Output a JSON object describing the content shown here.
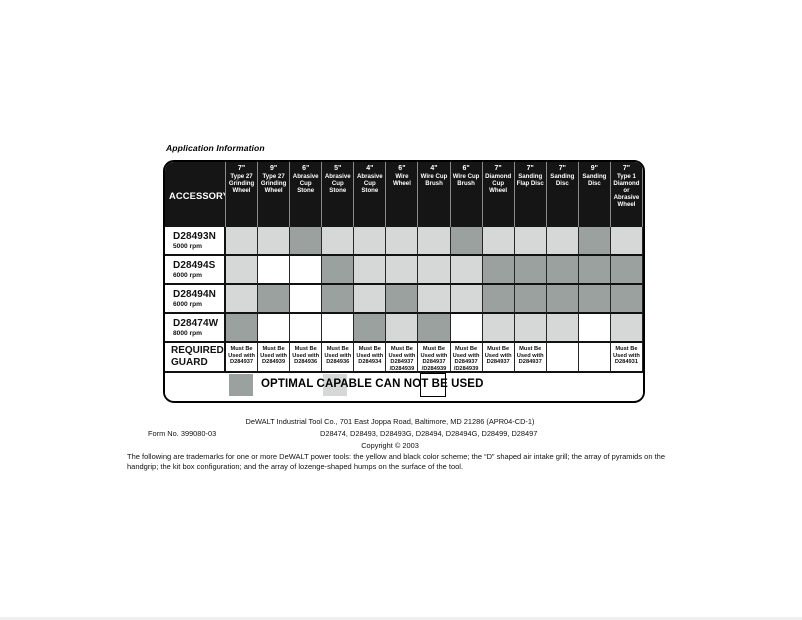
{
  "page": {
    "title": "Application Information"
  },
  "table": {
    "corner_header": "ACCESSORY",
    "columns": [
      {
        "size": "7\"",
        "name": "Type 27 Grinding Wheel"
      },
      {
        "size": "9\"",
        "name": "Type 27 Grinding Wheel"
      },
      {
        "size": "6\"",
        "name": "Abrasive Cup Stone"
      },
      {
        "size": "5\"",
        "name": "Abrasive Cup Stone"
      },
      {
        "size": "4\"",
        "name": "Abrasive Cup Stone"
      },
      {
        "size": "6\"",
        "name": "Wire Wheel"
      },
      {
        "size": "4\"",
        "name": "Wire Cup Brush"
      },
      {
        "size": "6\"",
        "name": "Wire Cup Brush"
      },
      {
        "size": "7\"",
        "name": "Diamond Cup Wheel"
      },
      {
        "size": "7\"",
        "name": "Sanding Flap Disc"
      },
      {
        "size": "7\"",
        "name": "Sanding Disc"
      },
      {
        "size": "9\"",
        "name": "Sanding Disc"
      },
      {
        "size": "7\"",
        "name": "Type 1 Diamond or Abrasive Wheel"
      }
    ],
    "rows": [
      {
        "model": "D28493N",
        "rpm": "5000 rpm",
        "cells": [
          "capable",
          "capable",
          "optimal",
          "capable",
          "capable",
          "capable",
          "capable",
          "optimal",
          "capable",
          "capable",
          "capable",
          "optimal",
          "capable"
        ]
      },
      {
        "model": "D28494S",
        "rpm": "6000 rpm",
        "cells": [
          "capable",
          "cannot",
          "cannot",
          "optimal",
          "capable",
          "capable",
          "capable",
          "capable",
          "optimal",
          "optimal",
          "optimal",
          "optimal",
          "optimal"
        ]
      },
      {
        "model": "D28494N",
        "rpm": "6000 rpm",
        "cells": [
          "capable",
          "optimal",
          "cannot",
          "optimal",
          "capable",
          "optimal",
          "capable",
          "capable",
          "optimal",
          "optimal",
          "optimal",
          "optimal",
          "optimal"
        ]
      },
      {
        "model": "D28474W",
        "rpm": "8000 rpm",
        "cells": [
          "optimal",
          "cannot",
          "cannot",
          "cannot",
          "optimal",
          "capable",
          "optimal",
          "cannot",
          "capable",
          "capable",
          "capable",
          "cannot",
          "capable"
        ]
      }
    ],
    "guard_row": {
      "label_line1": "REQUIRED",
      "label_line2": "GUARD",
      "cells": [
        [
          "Must Be",
          "Used with",
          "D284937"
        ],
        [
          "Must Be",
          "Used with",
          "D284939"
        ],
        [
          "Must Be",
          "Used with",
          "D284936"
        ],
        [
          "Must Be",
          "Used with",
          "D284936"
        ],
        [
          "Must Be",
          "Used with",
          "D284934"
        ],
        [
          "Must Be",
          "Used with",
          "D284937",
          "/D284939"
        ],
        [
          "Must Be",
          "Used with",
          "D284937",
          "/D284939"
        ],
        [
          "Must Be",
          "Used with",
          "D284937",
          "/D284939"
        ],
        [
          "Must Be",
          "Used with",
          "D284937"
        ],
        [
          "Must Be",
          "Used with",
          "D284937"
        ],
        [],
        [],
        [
          "Must Be",
          "Used with",
          "D284931"
        ]
      ]
    },
    "legend": {
      "text": "OPTIMAL CAPABLE CAN NOT BE USED",
      "optimal_label": "OPTIMAL",
      "capable_label": "CAPABLE",
      "cannot_label": "CAN NOT BE USED"
    },
    "colors": {
      "optimal": "#9aa19f",
      "capable": "#d5d8d6",
      "cannot": "#ffffff",
      "header_bg": "#151515"
    }
  },
  "footer": {
    "address_line": "DeWALT Industrial Tool Co., 701 East Joppa Road, Baltimore, MD 21286   (APR04-CD-1)",
    "form_no": "Form No. 399080-03",
    "models_line": "D28474, D28493, D28493G, D28494, D28494G, D28499, D28497",
    "copyright_line": "Copyright © 2003",
    "trademark_text": "The following are trademarks for one or more DeWALT power tools: the yellow and black color scheme; the “D” shaped air intake grill; the array of pyramids on the handgrip; the kit box configuration; and the array of lozenge-shaped humps on the surface of the tool."
  }
}
